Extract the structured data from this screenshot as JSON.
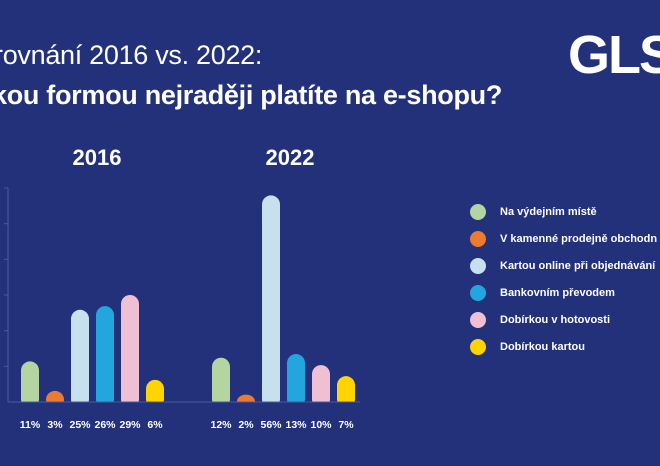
{
  "header": {
    "subtitle": "rovnání 2016 vs. 2022:",
    "title": "kou formou nejraději platíte na e-shopu?",
    "logo": "GLS"
  },
  "colors": {
    "background": "#22317a",
    "text": "#ffffff",
    "axis": "#4a5aa0"
  },
  "chart_data": {
    "type": "bar",
    "ylim": [
      0,
      58
    ],
    "series": [
      {
        "name": "Na výdejním místě",
        "color": "#b4d5a2"
      },
      {
        "name": "V kamenné prodejně obchodn",
        "color": "#ed7a2e"
      },
      {
        "name": "Kartou online při objednávání",
        "color": "#c7e0ee"
      },
      {
        "name": "Bankovním převodem",
        "color": "#22a6dd"
      },
      {
        "name": "Dobírkou v hotovosti",
        "color": "#efc0d4"
      },
      {
        "name": "Dobírkou kartou",
        "color": "#ffd400"
      }
    ],
    "groups": [
      {
        "label": "2016",
        "values": [
          11,
          3,
          25,
          26,
          29,
          6
        ],
        "value_labels": [
          "11%",
          "3%",
          "25%",
          "26%",
          "29%",
          "6%"
        ]
      },
      {
        "label": "2022",
        "values": [
          12,
          2,
          56,
          13,
          10,
          7
        ],
        "value_labels": [
          "12%",
          "2%",
          "56%",
          "13%",
          "10%",
          "7%"
        ]
      }
    ]
  }
}
